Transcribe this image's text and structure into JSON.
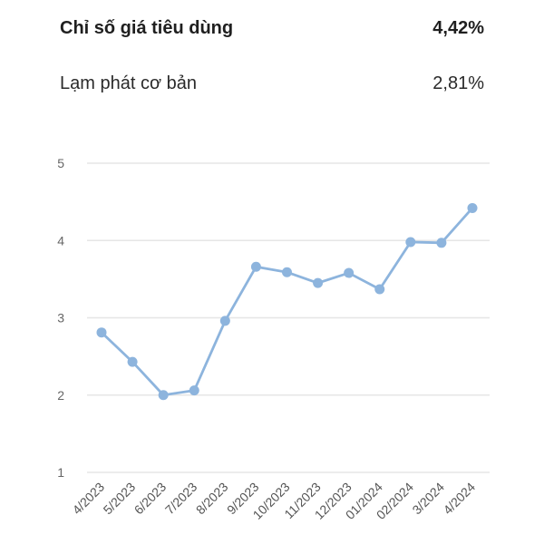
{
  "summary": {
    "primary_label": "Chỉ số giá tiêu dùng",
    "primary_value": "4,42%",
    "secondary_label": "Lạm phát cơ bản",
    "secondary_value": "2,81%"
  },
  "colors": {
    "series": "#8db4dd",
    "grid": "#e6e6e6"
  },
  "chart_data": {
    "type": "line",
    "title": "",
    "xlabel": "",
    "ylabel": "",
    "ylim": [
      1,
      5
    ],
    "yticks": [
      "1",
      "2",
      "3",
      "4",
      "5"
    ],
    "grid": true,
    "categories": [
      "4/2023",
      "5/2023",
      "6/2023",
      "7/2023",
      "8/2023",
      "9/2023",
      "10/2023",
      "11/2023",
      "12/2023",
      "01/2024",
      "02/2024",
      "3/2024",
      "4/2024"
    ],
    "series": [
      {
        "values": [
          2.81,
          2.43,
          2.0,
          2.06,
          2.96,
          3.66,
          3.59,
          3.45,
          3.58,
          3.37,
          3.98,
          3.97,
          4.42
        ]
      }
    ]
  }
}
